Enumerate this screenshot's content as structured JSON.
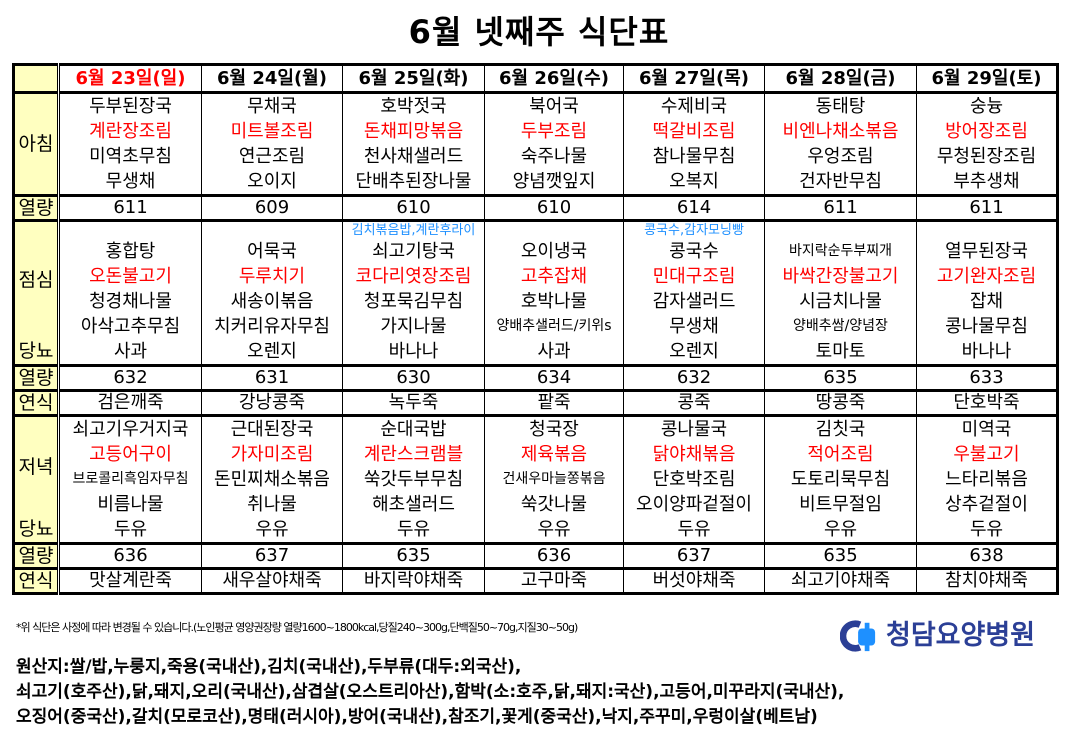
{
  "title": "6월 넷째주 식단표",
  "days": [
    {
      "date": "6월 23일(일)",
      "holiday": true,
      "breakfast": [
        "두부된장국",
        "계란장조림",
        "미역초무침",
        "무생채"
      ],
      "breakfast_kcal": "611",
      "lunch_special": "",
      "lunch": [
        "홍합탕",
        "오돈불고기",
        "청경채나물",
        "아삭고추무침",
        "사과"
      ],
      "lunch_kcal": "632",
      "lunch_soft": "검은깨죽",
      "dinner": [
        "쇠고기우거지국",
        "고등어구이",
        "브로콜리흑임자무침",
        "비름나물",
        "두유"
      ],
      "dinner_kcal": "636",
      "dinner_soft": "맛살계란죽"
    },
    {
      "date": "6월 24일(월)",
      "breakfast": [
        "무채국",
        "미트볼조림",
        "연근조림",
        "오이지"
      ],
      "breakfast_kcal": "609",
      "lunch_special": "",
      "lunch": [
        "어묵국",
        "두루치기",
        "새송이볶음",
        "치커리유자무침",
        "오렌지"
      ],
      "lunch_kcal": "631",
      "lunch_soft": "강낭콩죽",
      "dinner": [
        "근대된장국",
        "가자미조림",
        "돈민찌채소볶음",
        "취나물",
        "우유"
      ],
      "dinner_kcal": "637",
      "dinner_soft": "새우살야채죽"
    },
    {
      "date": "6월 25일(화)",
      "breakfast": [
        "호박젓국",
        "돈채피망볶음",
        "천사채샐러드",
        "단배추된장나물"
      ],
      "breakfast_kcal": "610",
      "lunch_special": "김치볶음밥,계란후라이",
      "lunch": [
        "쇠고기탕국",
        "코다리엿장조림",
        "청포묵김무침",
        "가지나물",
        "바나나"
      ],
      "lunch_kcal": "630",
      "lunch_soft": "녹두죽",
      "dinner": [
        "순대국밥",
        "계란스크램블",
        "쑥갓두부무침",
        "해초샐러드",
        "두유"
      ],
      "dinner_kcal": "635",
      "dinner_soft": "바지락야채죽"
    },
    {
      "date": "6월 26일(수)",
      "breakfast": [
        "북어국",
        "두부조림",
        "숙주나물",
        "양념깻잎지"
      ],
      "breakfast_kcal": "610",
      "lunch_special": "",
      "lunch": [
        "오이냉국",
        "고추잡채",
        "호박나물",
        "양배추샐러드/키위s",
        "사과"
      ],
      "lunch_kcal": "634",
      "lunch_soft": "팥죽",
      "dinner": [
        "청국장",
        "제육볶음",
        "건새우마늘쫑볶음",
        "쑥갓나물",
        "우유"
      ],
      "dinner_kcal": "636",
      "dinner_soft": "고구마죽"
    },
    {
      "date": "6월 27일(목)",
      "breakfast": [
        "수제비국",
        "떡갈비조림",
        "참나물무침",
        "오복지"
      ],
      "breakfast_kcal": "614",
      "lunch_special": "콩국수,감자모닝빵",
      "lunch": [
        "콩국수",
        "민대구조림",
        "감자샐러드",
        "무생채",
        "오렌지"
      ],
      "lunch_kcal": "632",
      "lunch_soft": "콩죽",
      "dinner": [
        "콩나물국",
        "닭야채볶음",
        "단호박조림",
        "오이양파겉절이",
        "두유"
      ],
      "dinner_kcal": "637",
      "dinner_soft": "버섯야채죽"
    },
    {
      "date": "6월 28일(금)",
      "breakfast": [
        "동태탕",
        "비엔나채소볶음",
        "우엉조림",
        "건자반무침"
      ],
      "breakfast_kcal": "611",
      "lunch_special": "",
      "lunch": [
        "바지락순두부찌개",
        "바싹간장불고기",
        "시금치나물",
        "양배추쌈/양념장",
        "토마토"
      ],
      "lunch_kcal": "635",
      "lunch_soft": "땅콩죽",
      "dinner": [
        "김칫국",
        "적어조림",
        "도토리묵무침",
        "비트무절임",
        "우유"
      ],
      "dinner_kcal": "635",
      "dinner_soft": "쇠고기야채죽"
    },
    {
      "date": "6월 29일(토)",
      "breakfast": [
        "숭늉",
        "방어장조림",
        "무청된장조림",
        "부추생채"
      ],
      "breakfast_kcal": "611",
      "lunch_special": "",
      "lunch": [
        "열무된장국",
        "고기완자조림",
        "잡채",
        "콩나물무침",
        "바나나"
      ],
      "lunch_kcal": "633",
      "lunch_soft": "단호박죽",
      "dinner": [
        "미역국",
        "우불고기",
        "느타리볶음",
        "상추겉절이",
        "두유"
      ],
      "dinner_kcal": "638",
      "dinner_soft": "참치야채죽"
    }
  ],
  "labels": {
    "breakfast": "아침",
    "kcal": "열량",
    "lunch": "점심",
    "diabetes": "당뇨",
    "soft": "연식",
    "dinner": "저녁"
  },
  "note": "*위 식단은 사정에 따라 변경될 수 있습니다.(노인평균 영양권장량 열량1600~1800kcal,당질240~300g,단백질50~70g,지질30~50g)",
  "origin": [
    "원산지:쌀/밥,누룽지,죽용(국내산),김치(국내산),두부류(대두:외국산),",
    "쇠고기(호주산),닭,돼지,오리(국내산),삼겹살(오스트리아산),함박(소:호주,닭,돼지:국산),고등어,미꾸라지(국내산),",
    "오징어(중국산),갈치(모로코산),명태(러시아),방어(국내산),참조기,꽃게(중국산),낙지,주꾸미,우렁이살(베트남)"
  ],
  "logo": {
    "text": "청담요양병원",
    "color": "#2b3f96",
    "accent": "#1e90ff"
  },
  "colors": {
    "label_bg": "#ffffc0",
    "main_dish": "#ff0000",
    "special": "#1e90ff"
  }
}
